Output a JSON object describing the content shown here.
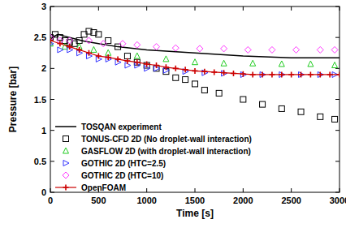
{
  "chart_data": {
    "type": "line",
    "x_label": "Time [s]",
    "y_label": "Pressure [bar]",
    "xlim": [
      0,
      3000
    ],
    "ylim": [
      0,
      3
    ],
    "xticks": [
      0,
      500,
      1000,
      1500,
      2000,
      2500,
      3000
    ],
    "yticks": [
      0,
      0.5,
      1,
      1.5,
      2,
      2.5,
      3
    ],
    "grid": false,
    "legend": "lower left",
    "series": [
      {
        "name": "TOSQAN experiment",
        "type": "line",
        "color": "#000000",
        "line_style": "solid",
        "marker": "none",
        "x": [
          0,
          40,
          80,
          150,
          250,
          350,
          500,
          700,
          1000,
          1500,
          2000,
          2500,
          3000
        ],
        "values": [
          2.45,
          2.52,
          2.55,
          2.52,
          2.48,
          2.44,
          2.4,
          2.35,
          2.3,
          2.25,
          2.2,
          2.17,
          2.17
        ]
      },
      {
        "name": "TONUS-CFD 2D (No droplet-wall interaction)",
        "type": "scatter",
        "color": "#000000",
        "marker": "square",
        "x": [
          0,
          50,
          100,
          150,
          200,
          250,
          300,
          350,
          400,
          450,
          500,
          600,
          700,
          800,
          900,
          1000,
          1100,
          1200,
          1300,
          1400,
          1500,
          1600,
          1750,
          2000,
          2200,
          2400,
          2600,
          2800,
          2950
        ],
        "values": [
          2.5,
          2.55,
          2.5,
          2.45,
          2.42,
          2.4,
          2.45,
          2.55,
          2.6,
          2.58,
          2.55,
          2.45,
          2.35,
          2.2,
          2.1,
          2.05,
          2.0,
          1.95,
          1.85,
          1.82,
          1.75,
          1.65,
          1.6,
          1.5,
          1.42,
          1.35,
          1.3,
          1.22,
          1.18
        ]
      },
      {
        "name": "GASFLOW 2D (with droplet-wall interaction)",
        "type": "scatter",
        "color": "#22cc22",
        "marker": "triangle",
        "x": [
          0,
          150,
          300,
          450,
          600,
          900,
          1200,
          1500,
          1800,
          2100,
          2400,
          2700,
          2950
        ],
        "values": [
          2.4,
          2.35,
          2.35,
          2.3,
          2.25,
          2.2,
          2.15,
          2.1,
          2.08,
          2.08,
          2.07,
          2.07,
          2.05
        ]
      },
      {
        "name": "GOTHIC 2D (HTC=2.5)",
        "type": "scatter",
        "color": "#3333ff",
        "marker": "triangle-right",
        "x": [
          0,
          100,
          200,
          300,
          400,
          500,
          600,
          700,
          800,
          900,
          1000,
          1100,
          1200,
          1400,
          1600,
          1800,
          2000,
          2200,
          2400,
          2600,
          2800,
          2950
        ],
        "values": [
          2.4,
          2.3,
          2.3,
          2.25,
          2.2,
          2.15,
          2.15,
          2.1,
          2.05,
          2.05,
          2.0,
          2.0,
          1.97,
          1.95,
          1.93,
          1.92,
          1.9,
          1.9,
          1.9,
          1.9,
          1.9,
          1.9
        ]
      },
      {
        "name": "GOTHIC 2D (HTC=10)",
        "type": "scatter",
        "color": "#ff33ff",
        "marker": "diamond",
        "x": [
          0,
          100,
          200,
          400,
          550,
          750,
          900,
          1100,
          1300,
          1550,
          1800,
          2050,
          2300,
          2550,
          2800,
          2950
        ],
        "values": [
          2.5,
          2.45,
          2.45,
          2.45,
          2.4,
          2.4,
          2.38,
          2.35,
          2.33,
          2.32,
          2.32,
          2.3,
          2.3,
          2.3,
          2.3,
          2.3
        ]
      },
      {
        "name": "OpenFOAM",
        "type": "line",
        "color": "#cc0000",
        "line_style": "solid",
        "marker": "plus",
        "x": [
          0,
          100,
          200,
          300,
          400,
          500,
          600,
          700,
          800,
          900,
          1000,
          1100,
          1200,
          1300,
          1400,
          1500,
          1600,
          1700,
          1800,
          1900,
          2000,
          2100,
          2200,
          2300,
          2400,
          2500,
          2600,
          2700,
          2800,
          2900,
          3000
        ],
        "values": [
          2.45,
          2.4,
          2.35,
          2.3,
          2.25,
          2.2,
          2.18,
          2.15,
          2.12,
          2.1,
          2.07,
          2.05,
          2.02,
          2.0,
          1.98,
          1.96,
          1.95,
          1.94,
          1.93,
          1.92,
          1.91,
          1.9,
          1.9,
          1.9,
          1.9,
          1.9,
          1.9,
          1.9,
          1.9,
          1.9,
          1.9
        ]
      }
    ]
  }
}
